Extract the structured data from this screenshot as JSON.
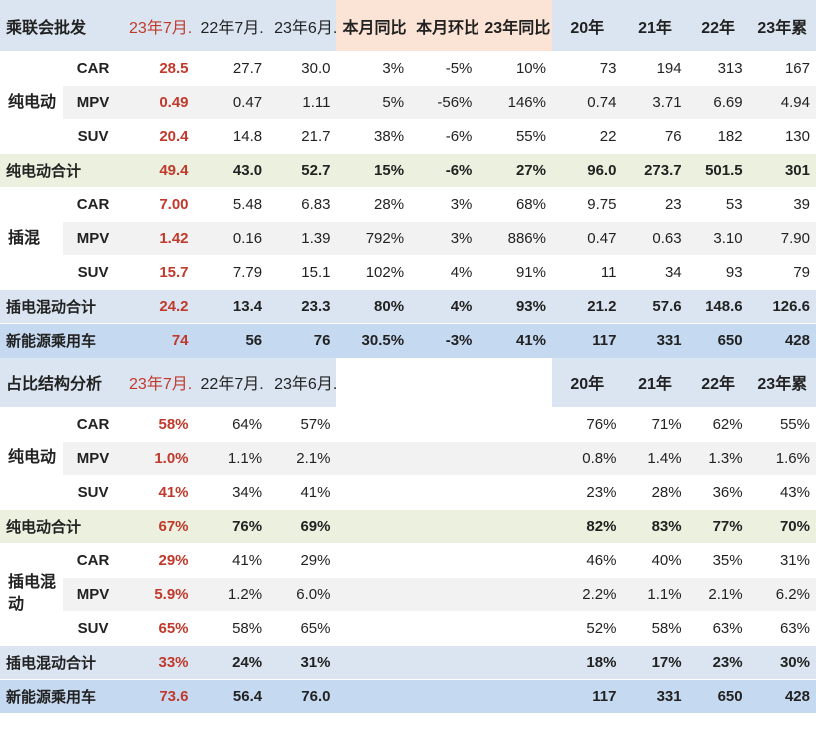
{
  "header1": {
    "title": "乘联会批发",
    "cols": [
      "23年7月.",
      "22年7月.",
      "23年6月.",
      "本月同比",
      "本月环比",
      "23年同比",
      "20年",
      "21年",
      "22年",
      "23年累"
    ]
  },
  "section1": [
    {
      "group": "纯电动",
      "rows": [
        {
          "label": "CAR",
          "v": [
            "28.5",
            "27.7",
            "30.0",
            "3%",
            "-5%",
            "10%",
            "73",
            "194",
            "313",
            "167"
          ]
        },
        {
          "label": "MPV",
          "v": [
            "0.49",
            "0.47",
            "1.11",
            "5%",
            "-56%",
            "146%",
            "0.74",
            "3.71",
            "6.69",
            "4.94"
          ]
        },
        {
          "label": "SUV",
          "v": [
            "20.4",
            "14.8",
            "21.7",
            "38%",
            "-6%",
            "55%",
            "22",
            "76",
            "182",
            "130"
          ]
        }
      ],
      "total": {
        "label": "纯电动合计",
        "v": [
          "49.4",
          "43.0",
          "52.7",
          "15%",
          "-6%",
          "27%",
          "96.0",
          "273.7",
          "501.5",
          "301"
        ]
      }
    },
    {
      "group": "插混",
      "rows": [
        {
          "label": "CAR",
          "v": [
            "7.00",
            "5.48",
            "6.83",
            "28%",
            "3%",
            "68%",
            "9.75",
            "23",
            "53",
            "39"
          ]
        },
        {
          "label": "MPV",
          "v": [
            "1.42",
            "0.16",
            "1.39",
            "792%",
            "3%",
            "886%",
            "0.47",
            "0.63",
            "3.10",
            "7.90"
          ]
        },
        {
          "label": "SUV",
          "v": [
            "15.7",
            "7.79",
            "15.1",
            "102%",
            "4%",
            "91%",
            "11",
            "34",
            "93",
            "79"
          ]
        }
      ],
      "total": {
        "label": "插电混动合计",
        "v": [
          "24.2",
          "13.4",
          "23.3",
          "80%",
          "4%",
          "93%",
          "21.2",
          "57.6",
          "148.6",
          "126.6"
        ]
      }
    }
  ],
  "grand1": {
    "label": "新能源乘用车",
    "v": [
      "74",
      "56",
      "76",
      "30.5%",
      "-3%",
      "41%",
      "117",
      "331",
      "650",
      "428"
    ]
  },
  "header2": {
    "title": "占比结构分析",
    "cols": [
      "23年7月.",
      "22年7月.",
      "23年6月.",
      "",
      "",
      "",
      "20年",
      "21年",
      "22年",
      "23年累"
    ]
  },
  "section2": [
    {
      "group": "纯电动",
      "rows": [
        {
          "label": "CAR",
          "v": [
            "58%",
            "64%",
            "57%",
            "",
            "",
            "",
            "76%",
            "71%",
            "62%",
            "55%"
          ]
        },
        {
          "label": "MPV",
          "v": [
            "1.0%",
            "1.1%",
            "2.1%",
            "",
            "",
            "",
            "0.8%",
            "1.4%",
            "1.3%",
            "1.6%"
          ]
        },
        {
          "label": "SUV",
          "v": [
            "41%",
            "34%",
            "41%",
            "",
            "",
            "",
            "23%",
            "28%",
            "36%",
            "43%"
          ]
        }
      ],
      "total": {
        "label": "纯电动合计",
        "v": [
          "67%",
          "76%",
          "69%",
          "",
          "",
          "",
          "82%",
          "83%",
          "77%",
          "70%"
        ]
      }
    },
    {
      "group": "插电混动",
      "rows": [
        {
          "label": "CAR",
          "v": [
            "29%",
            "41%",
            "29%",
            "",
            "",
            "",
            "46%",
            "40%",
            "35%",
            "31%"
          ]
        },
        {
          "label": "MPV",
          "v": [
            "5.9%",
            "1.2%",
            "6.0%",
            "",
            "",
            "",
            "2.2%",
            "1.1%",
            "2.1%",
            "6.2%"
          ]
        },
        {
          "label": "SUV",
          "v": [
            "65%",
            "58%",
            "65%",
            "",
            "",
            "",
            "52%",
            "58%",
            "63%",
            "63%"
          ]
        }
      ],
      "total": {
        "label": "插电混动合计",
        "v": [
          "33%",
          "24%",
          "31%",
          "",
          "",
          "",
          "18%",
          "17%",
          "23%",
          "30%"
        ]
      }
    }
  ],
  "grand2": {
    "label": "新能源乘用车",
    "v": [
      "73.6",
      "56.4",
      "76.0",
      "",
      "",
      "",
      "117",
      "331",
      "650",
      "428"
    ]
  },
  "colors": {
    "accent_red": "#c0392b",
    "header_blue": "#dbe5f1",
    "orange": "#fbe4d5",
    "green": "#ebf1de"
  }
}
